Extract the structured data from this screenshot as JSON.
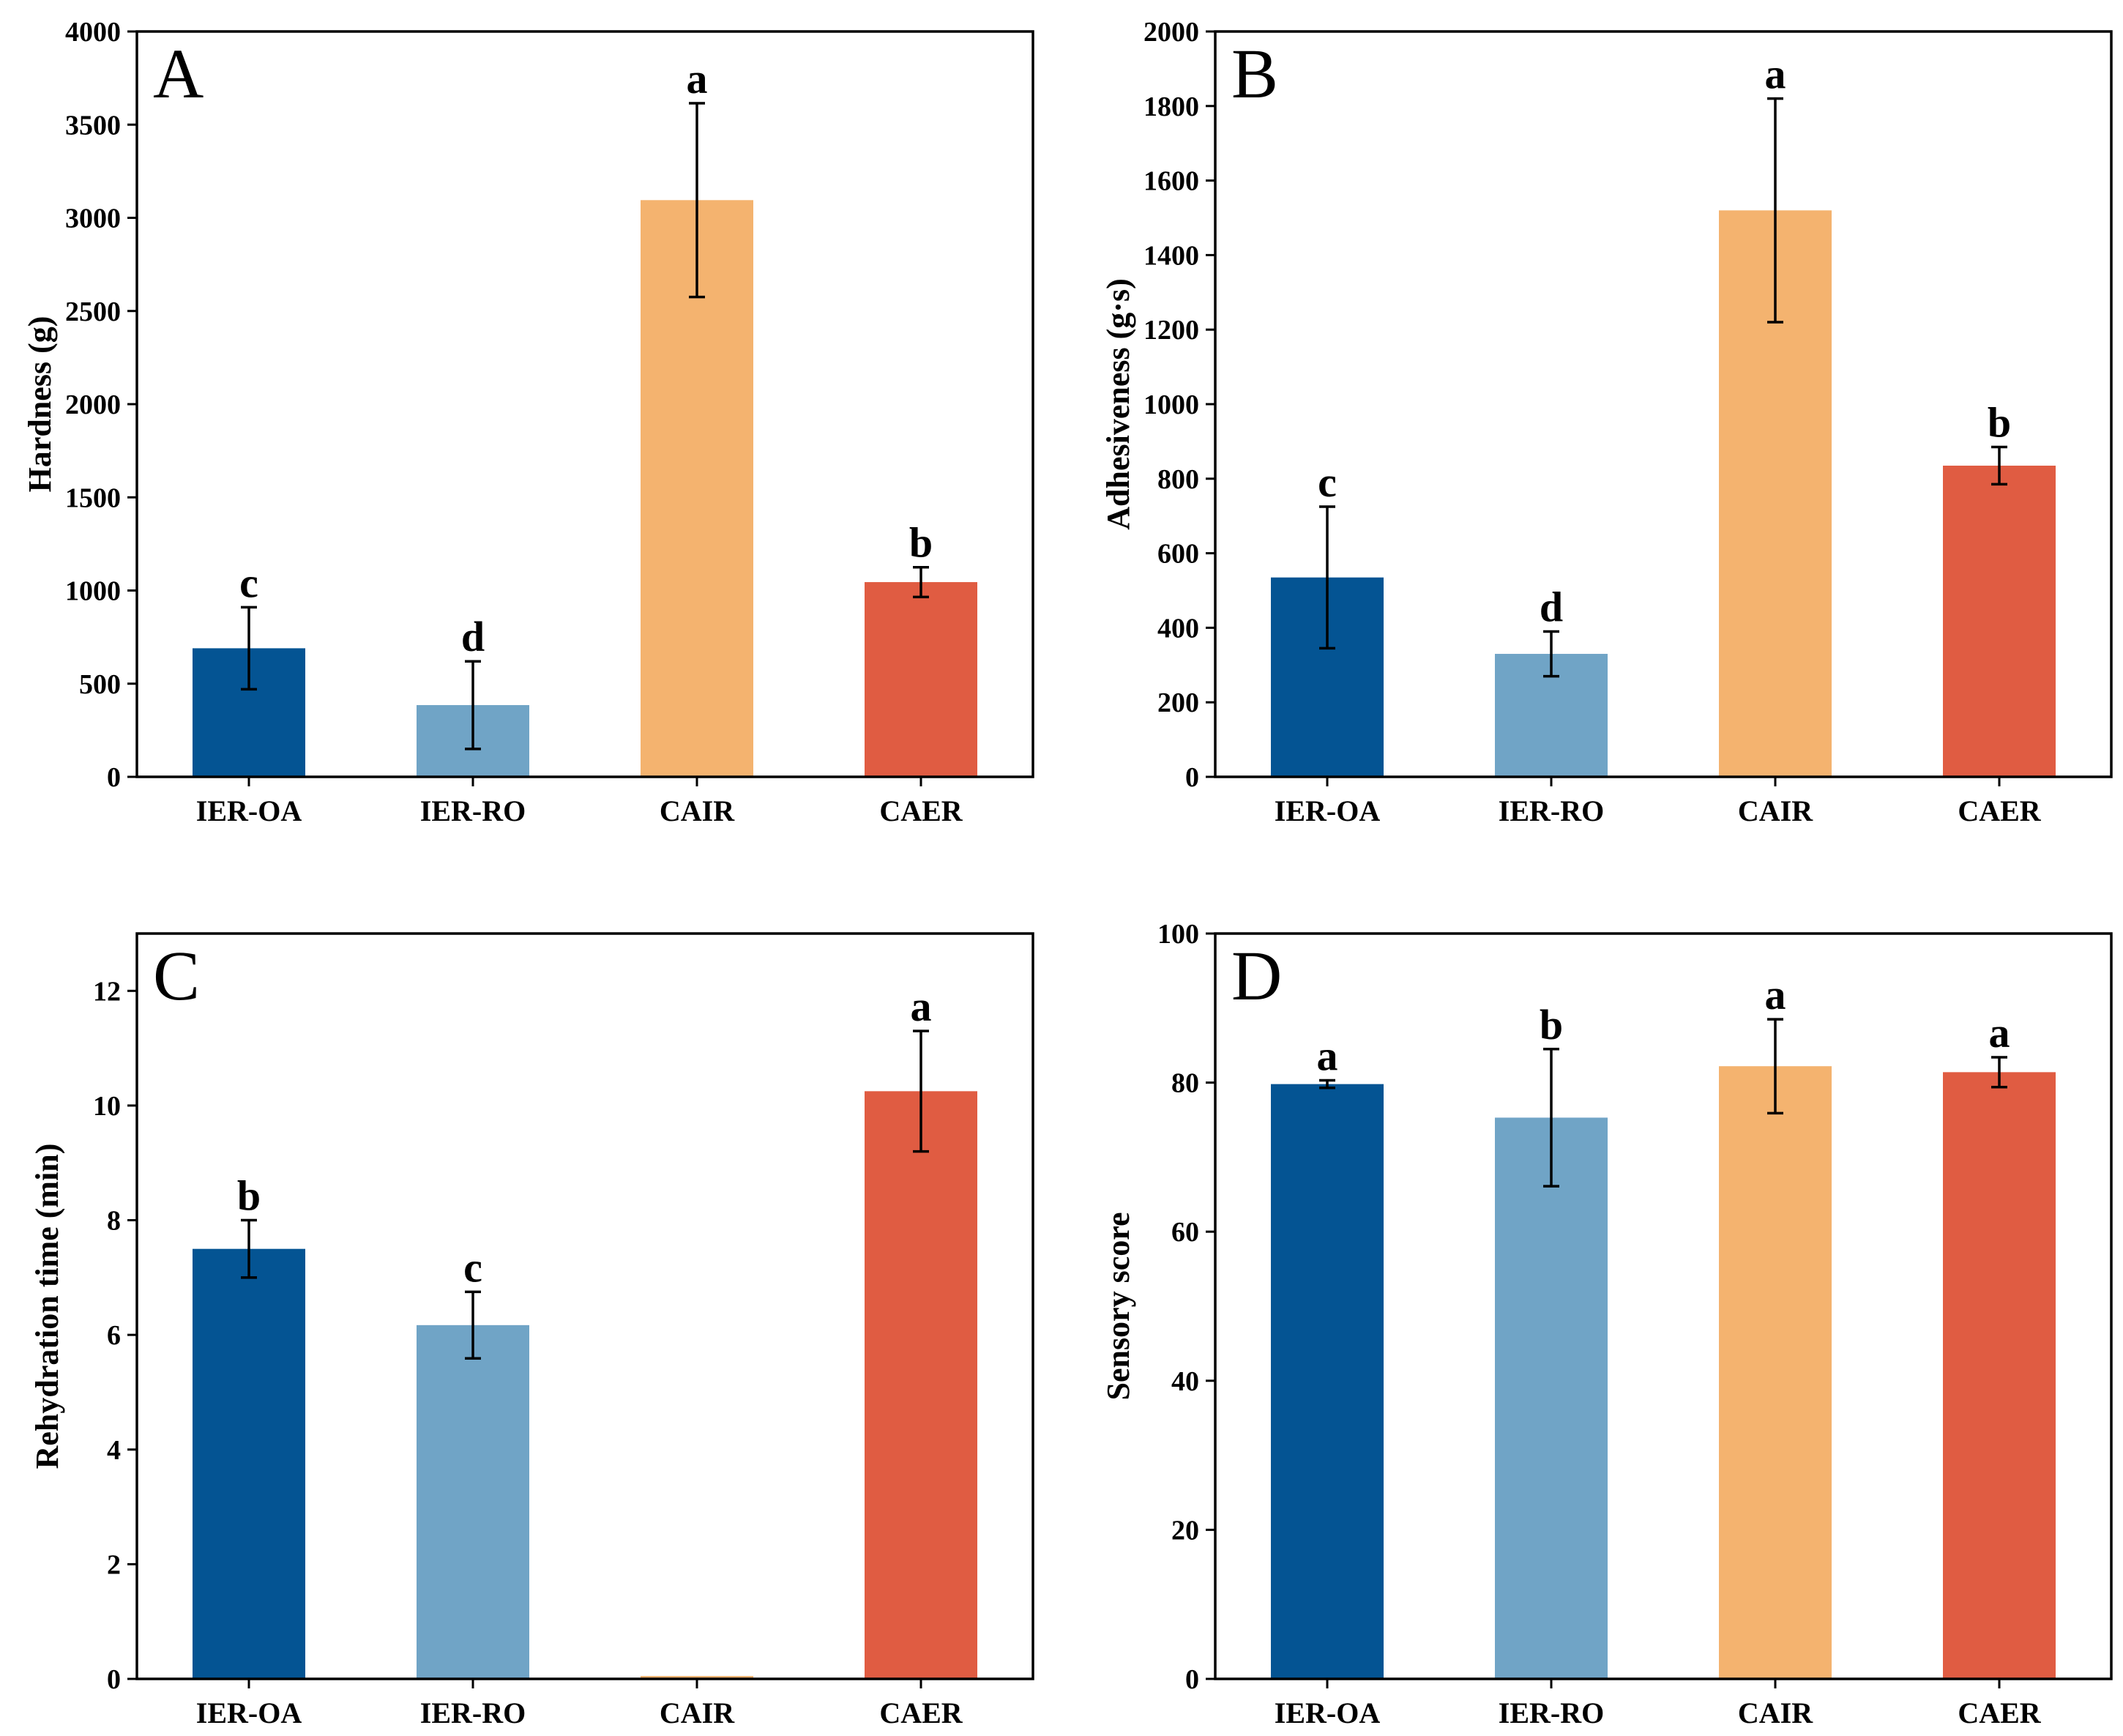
{
  "chart_data": [
    {
      "panel": "A",
      "type": "bar",
      "categories": [
        "IER-OA",
        "IER-RO",
        "CAIR",
        "CAER"
      ],
      "values": [
        690,
        385,
        3095,
        1045
      ],
      "errors": [
        220,
        235,
        520,
        80
      ],
      "significance": [
        "c",
        "d",
        "a",
        "b"
      ],
      "colors": [
        "#045493",
        "#70a4c6",
        "#f4b36f",
        "#e05c42"
      ],
      "ylabel": "Hardness (g)",
      "xlabel": "",
      "ylim": [
        0,
        4000
      ],
      "yticks": [
        0,
        500,
        1000,
        1500,
        2000,
        2500,
        3000,
        3500,
        4000
      ],
      "ytick_labels": [
        "0",
        "500",
        "1000",
        "1500",
        "2000",
        "2500",
        "3000",
        "3500",
        "4000"
      ]
    },
    {
      "panel": "B",
      "type": "bar",
      "categories": [
        "IER-OA",
        "IER-RO",
        "CAIR",
        "CAER"
      ],
      "values": [
        535,
        330,
        1520,
        835
      ],
      "errors": [
        190,
        60,
        300,
        50
      ],
      "significance": [
        "c",
        "d",
        "a",
        "b"
      ],
      "colors": [
        "#045493",
        "#70a4c6",
        "#f4b36f",
        "#e05c42"
      ],
      "ylabel": "Adhesiveness (g·s)",
      "xlabel": "",
      "ylim": [
        0,
        2000
      ],
      "yticks": [
        0,
        200,
        400,
        600,
        800,
        1000,
        1200,
        1400,
        1600,
        1800,
        2000
      ],
      "ytick_labels": [
        "0",
        "200",
        "400",
        "600",
        "800",
        "1000",
        "1200",
        "1400",
        "1600",
        "1800",
        "2000"
      ]
    },
    {
      "panel": "C",
      "type": "bar",
      "categories": [
        "IER-OA",
        "IER-RO",
        "CAIR",
        "CAER"
      ],
      "values": [
        7.5,
        6.17,
        0.05,
        10.25
      ],
      "errors": [
        0.5,
        0.58,
        null,
        1.05
      ],
      "significance": [
        "b",
        "c",
        "",
        "a"
      ],
      "colors": [
        "#045493",
        "#70a4c6",
        "#f4b36f",
        "#e05c42"
      ],
      "ylabel": "Rehydration time (min)",
      "xlabel": "",
      "ylim": [
        0,
        13
      ],
      "yticks": [
        0,
        2,
        4,
        6,
        8,
        10,
        12
      ],
      "ytick_labels": [
        "0",
        "2",
        "4",
        "6",
        "8",
        "10",
        "12"
      ]
    },
    {
      "panel": "D",
      "type": "bar",
      "categories": [
        "IER-OA",
        "IER-RO",
        "CAIR",
        "CAER"
      ],
      "values": [
        79.8,
        75.3,
        82.2,
        81.4
      ],
      "errors": [
        0.5,
        9.2,
        6.3,
        2.0
      ],
      "significance": [
        "a",
        "b",
        "a",
        "a"
      ],
      "colors": [
        "#045493",
        "#70a4c6",
        "#f4b36f",
        "#e05c42"
      ],
      "ylabel": "Sensory score",
      "xlabel": "",
      "ylim": [
        0,
        100
      ],
      "yticks": [
        0,
        20,
        40,
        60,
        80,
        100
      ],
      "ytick_labels": [
        "0",
        "20",
        "40",
        "60",
        "80",
        "100"
      ]
    }
  ]
}
